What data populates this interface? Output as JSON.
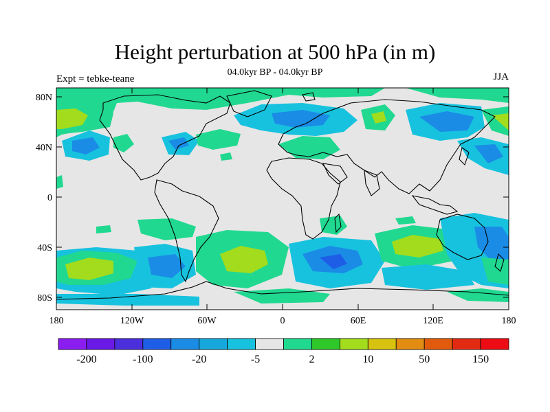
{
  "title": "Height perturbation at 500 hPa (in m)",
  "subtitle": "04.0kyr BP - 04.0kyr BP",
  "left_label": "Expt = tebke-teane",
  "right_label": "JJA",
  "map": {
    "projection": "cylindrical equidistant",
    "field": "500 hPa geopotential height perturbation",
    "units": "m",
    "lat_ticks": [
      "80N",
      "40N",
      "0",
      "40S",
      "80S"
    ],
    "lon_ticks": [
      "180",
      "120W",
      "60W",
      "0",
      "60E",
      "120E",
      "180"
    ],
    "background_color": "#e6e6e6"
  },
  "colorbar": {
    "colors": [
      "#8a1df0",
      "#6a19e6",
      "#4b2fdc",
      "#1e5de6",
      "#1a8ce6",
      "#16a8dc",
      "#17c2de",
      "#e6e6e6",
      "#21d890",
      "#2ec82b",
      "#a2dc1c",
      "#d7c30f",
      "#e28d11",
      "#e25b0c",
      "#e22a12",
      "#ee0c14"
    ],
    "labels": [
      "-200",
      "-100",
      "-20",
      "-5",
      "2",
      "10",
      "50",
      "150"
    ]
  },
  "regions": [
    {
      "name": "nw-pacific-positive",
      "color": "#a2dc1c"
    },
    {
      "name": "s-pacific-positive",
      "color": "#a2dc1c"
    },
    {
      "name": "s-atlantic-positive",
      "color": "#a2dc1c"
    },
    {
      "name": "s-indian-positive",
      "color": "#a2dc1c"
    },
    {
      "name": "n-atlantic-negative",
      "color": "#1a8ce6"
    },
    {
      "name": "s-indian-west-negative",
      "color": "#1e5de6"
    },
    {
      "name": "australia-negative",
      "color": "#1a8ce6"
    }
  ]
}
